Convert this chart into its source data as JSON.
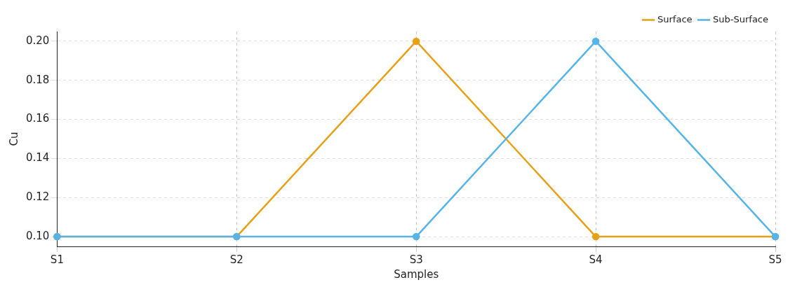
{
  "chart_data": {
    "type": "line",
    "xlabel": "Samples",
    "ylabel": "Cu",
    "categories": [
      "S1",
      "S2",
      "S3",
      "S4",
      "S5"
    ],
    "series": [
      {
        "name": "Surface",
        "color": "#e6a117",
        "values": [
          0.1,
          0.1,
          0.2,
          0.1,
          0.1
        ]
      },
      {
        "name": "Sub-Surface",
        "color": "#56b4e9",
        "values": [
          0.1,
          0.1,
          0.1,
          0.2,
          0.1
        ]
      }
    ],
    "ylim": [
      0.095,
      0.205
    ],
    "yticks": [
      {
        "value": 0.1,
        "label": "0.10"
      },
      {
        "value": 0.12,
        "label": "0.12"
      },
      {
        "value": 0.14,
        "label": "0.14"
      },
      {
        "value": 0.16,
        "label": "0.16"
      },
      {
        "value": 0.18,
        "label": "0.18"
      },
      {
        "value": 0.2,
        "label": "0.20"
      }
    ],
    "grid": true,
    "legend": "top right",
    "marker": "circle",
    "line_style": "solid"
  }
}
